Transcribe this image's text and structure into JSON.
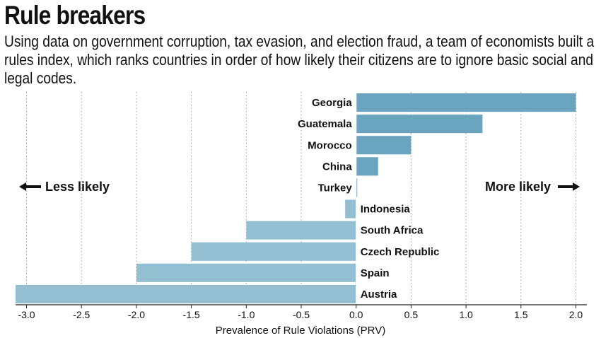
{
  "chart_data": {
    "type": "bar",
    "orientation": "horizontal",
    "title": "Rule breakers",
    "subtitle": "Using data on government corruption, tax evasion, and election fraud, a team of economists built a rules index, which ranks countries in order of how likely their citizens are to ignore basic social and legal codes.",
    "xlabel": "Prevalence of Rule Violations (PRV)",
    "ylabel": "",
    "xlim": [
      -3.1,
      2.1
    ],
    "grid": true,
    "ticks": [
      -3.0,
      -2.5,
      -2.0,
      -1.5,
      -1.0,
      -0.5,
      0.0,
      0.5,
      1.0,
      1.5,
      2.0
    ],
    "tick_labels": [
      "-3.0",
      "-2.5",
      "-2.0",
      "-1.5",
      "-1.0",
      "-0.5",
      "0.0",
      "0.5",
      "1.0",
      "1.5",
      "2.0"
    ],
    "categories": [
      "Georgia",
      "Guatemala",
      "Morocco",
      "China",
      "Turkey",
      "Indonesia",
      "South Africa",
      "Czech Republic",
      "Spain",
      "Austria"
    ],
    "values": [
      2.0,
      1.15,
      0.5,
      0.2,
      0.01,
      -0.1,
      -1.0,
      -1.5,
      -2.0,
      -3.1
    ],
    "annotations": {
      "left": "Less likely",
      "right": "More likely"
    },
    "colors": {
      "positive": "#6aa4bf",
      "negative": "#94bfd3",
      "grid": "#9a9a9a",
      "axis": "#222222"
    }
  }
}
